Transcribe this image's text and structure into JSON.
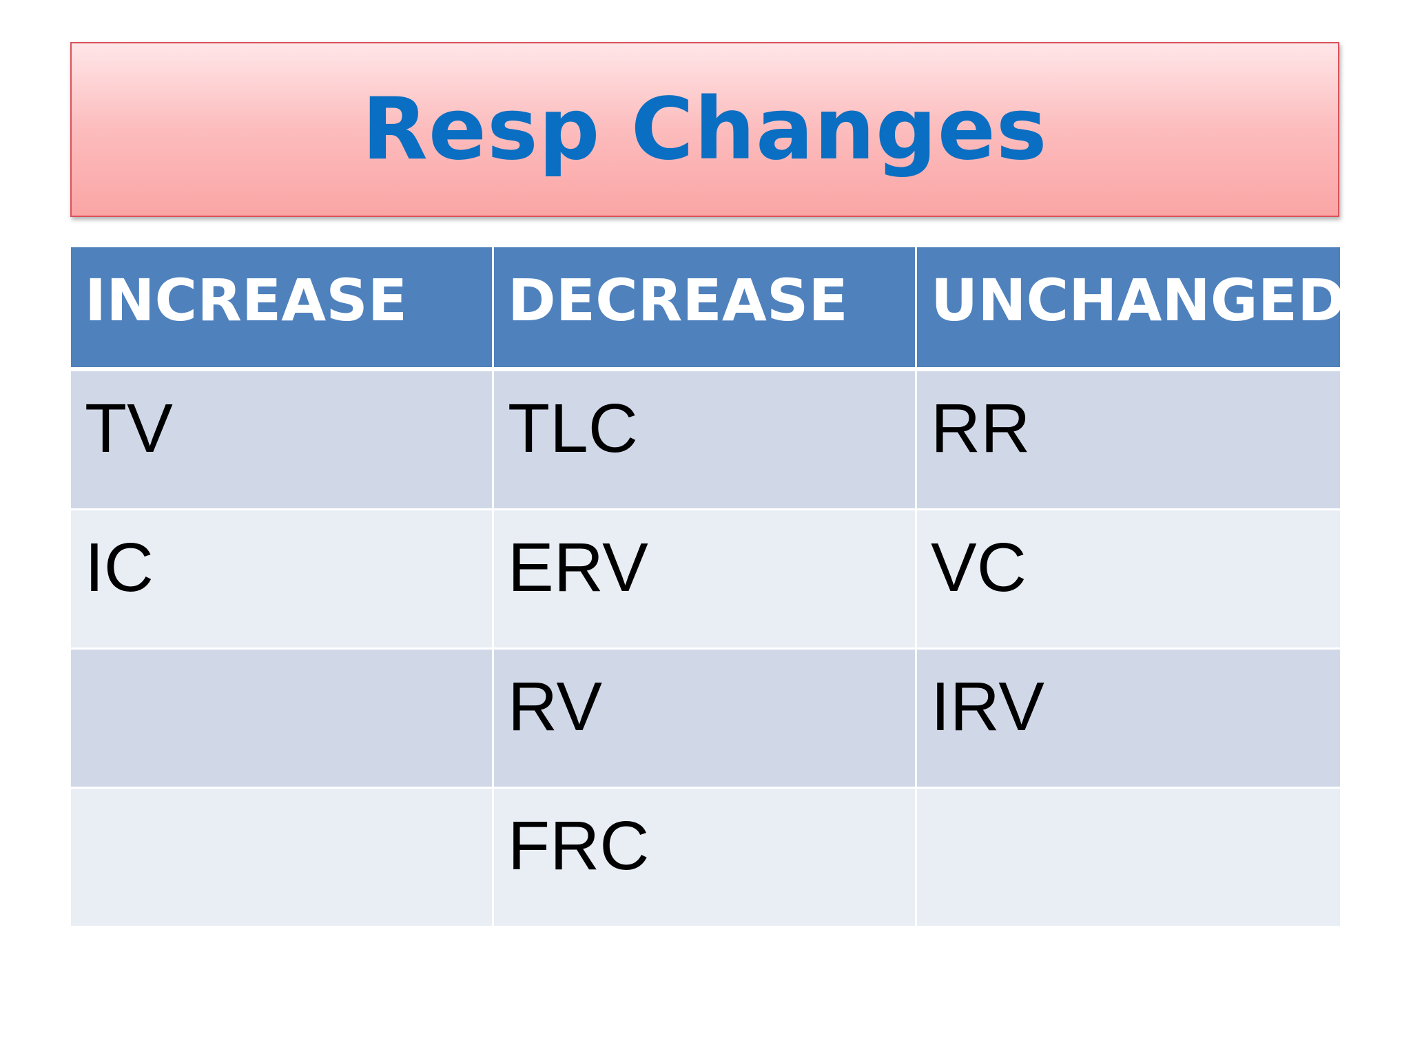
{
  "header": {
    "title": "Resp Changes"
  },
  "table": {
    "columns": [
      "INCREASE",
      "DECREASE",
      "UNCHANGED"
    ],
    "rows": [
      [
        "TV",
        "TLC",
        "RR"
      ],
      [
        "IC",
        "ERV",
        "VC"
      ],
      [
        null,
        "RV",
        "IRV"
      ],
      [
        null,
        "FRC",
        null
      ]
    ]
  }
}
